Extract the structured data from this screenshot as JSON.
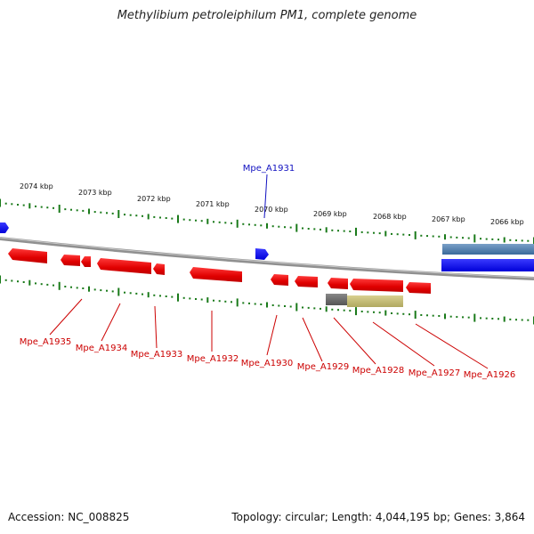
{
  "title": "Methylibium petroleiphilum PM1, complete genome",
  "footer": {
    "accession": "Accession: NC_008825",
    "summary": "Topology: circular; Length: 4,044,195 bp; Genes: 3,864"
  },
  "ruler": [
    "2074 kbp",
    "2073 kbp",
    "2072 kbp",
    "2071 kbp",
    "2070 kbp",
    "2069 kbp",
    "2068 kbp",
    "2067 kbp",
    "2066 kbp"
  ],
  "genes_top": [
    "Mpe_A1931"
  ],
  "genes_bottom": [
    "Mpe_A1935",
    "Mpe_A1934",
    "Mpe_A1933",
    "Mpe_A1932",
    "Mpe_A1930",
    "Mpe_A1929",
    "Mpe_A1928",
    "Mpe_A1927",
    "Mpe_A1926"
  ],
  "colors": {
    "forward": "#1f1fe0",
    "reverse": "#e01010",
    "tick": "#1a7a1a",
    "backbone": "#808080",
    "label_forward": "#1010c0",
    "label_reverse": "#cc0000"
  }
}
